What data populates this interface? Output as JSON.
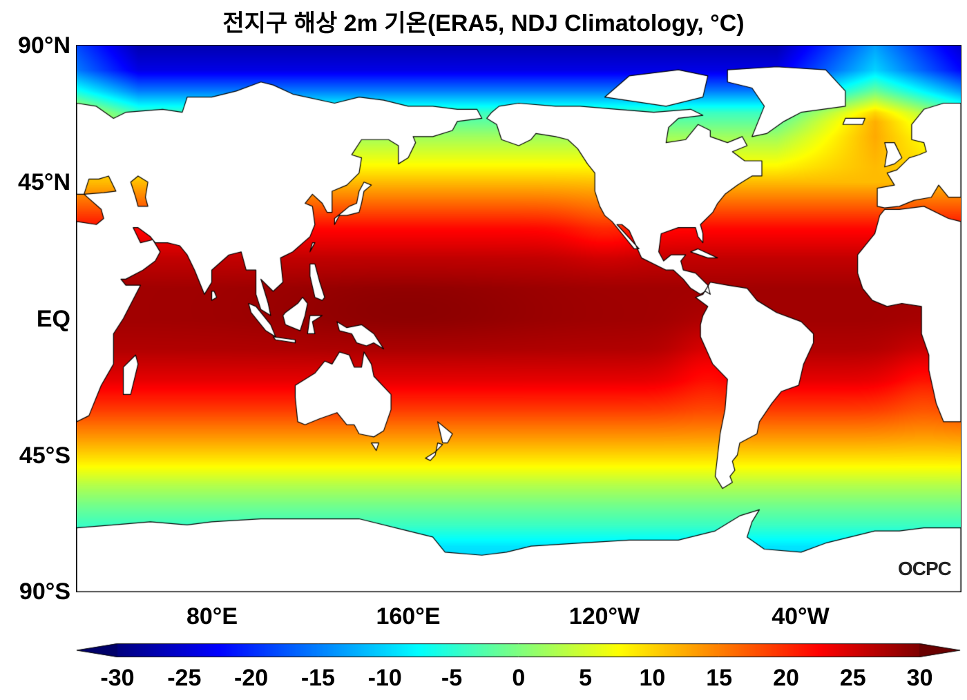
{
  "title": "전지구 해상 2m 기온(ERA5, NDJ Climatology, °C)",
  "map": {
    "projection": "equirectangular",
    "lon_range_deg_east": [
      25,
      385
    ],
    "lat_range": [
      -90,
      90
    ],
    "land_color": "#ffffff",
    "coastline_color": "#000000",
    "lat_labels": [
      "90°N",
      "45°N",
      "EQ",
      "45°S",
      "90°S"
    ],
    "lon_labels": [
      "80°E",
      "160°E",
      "120°W",
      "40°W"
    ],
    "logo_text": "OCPC"
  },
  "colorbar": {
    "colormap": "jet",
    "min": -30,
    "max": 30,
    "extend": "both",
    "tick_labels": [
      "-30",
      "-25",
      "-20",
      "-15",
      "-10",
      "-5",
      "0",
      "5",
      "10",
      "15",
      "20",
      "25",
      "30"
    ],
    "units": "°C"
  }
}
